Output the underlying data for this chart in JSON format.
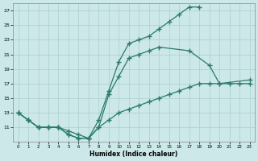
{
  "xlabel": "Humidex (Indice chaleur)",
  "bg_color": "#cce8e8",
  "grid_color": "#aacfcf",
  "line_color": "#2a7a6a",
  "xlim": [
    -0.5,
    23.5
  ],
  "ylim": [
    9,
    28
  ],
  "yticks": [
    11,
    13,
    15,
    17,
    19,
    21,
    23,
    25,
    27
  ],
  "line1_x": [
    0,
    1,
    2,
    3,
    4,
    5,
    6,
    7,
    8,
    9,
    10,
    11,
    12,
    13,
    14,
    15,
    16,
    17,
    18
  ],
  "line1_y": [
    13,
    12,
    11,
    11,
    11,
    10,
    9.5,
    9.5,
    12,
    16,
    20,
    22.5,
    23,
    23.5,
    24.5,
    25.5,
    26.5,
    27.5,
    27.5
  ],
  "line2_x": [
    0,
    1,
    2,
    3,
    4,
    5,
    6,
    7,
    8,
    9,
    10,
    11,
    12,
    13,
    14,
    17,
    19,
    20,
    23
  ],
  "line2_y": [
    13,
    12,
    11,
    11,
    11,
    10.5,
    10,
    9.5,
    11,
    15.5,
    18,
    20.5,
    21,
    21.5,
    22,
    21.5,
    19.5,
    17,
    17.5
  ],
  "line3_x": [
    0,
    1,
    2,
    3,
    4,
    5,
    6,
    7,
    8,
    9,
    10,
    11,
    12,
    13,
    14,
    15,
    16,
    17,
    18,
    19,
    20,
    21,
    22,
    23
  ],
  "line3_y": [
    13,
    12,
    11,
    11,
    11,
    10,
    9.5,
    9.5,
    11,
    12,
    13,
    13.5,
    14,
    14.5,
    15,
    15.5,
    16,
    16.5,
    17,
    17,
    17,
    17,
    17,
    17
  ]
}
